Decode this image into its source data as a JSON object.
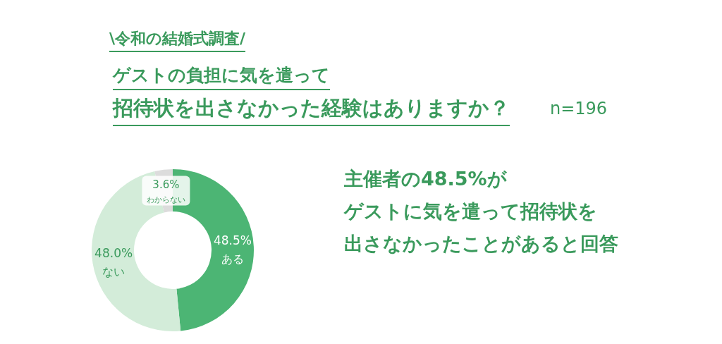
{
  "chart_data": {
    "type": "donut",
    "title": "ゲストの負担に気を遣って",
    "subtitle": "招待状を出さなかった経験はありますか？",
    "categories": [
      "ある",
      "ない",
      "わからない"
    ],
    "values": [
      48.5,
      48.0,
      3.6
    ],
    "value_labels": [
      "48.5%",
      "48.0%",
      "3.6%"
    ],
    "colors": [
      "#4cb574",
      "#d3ecd9",
      "#dcdcdc"
    ],
    "annotations": [
      "\\令和の結婚式調査/",
      "n=196",
      "主催者の**48.5%**が",
      "ゲストに気を遣って招待状を",
      "出さなかったことがあると回答"
    ]
  }
}
